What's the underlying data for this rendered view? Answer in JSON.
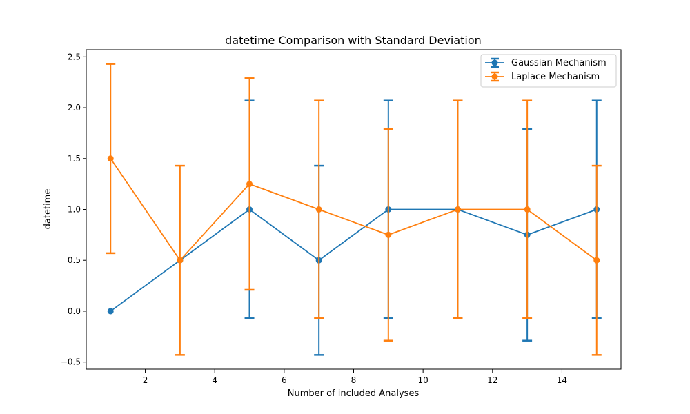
{
  "chart_data": {
    "type": "line",
    "title": "datetime Comparison with Standard Deviation",
    "xlabel": "Number of included Analyses",
    "ylabel": "datetime",
    "xlim": [
      0.3,
      15.7
    ],
    "ylim": [
      -0.57,
      2.57
    ],
    "x_ticks": [
      2,
      4,
      6,
      8,
      10,
      12,
      14
    ],
    "y_ticks": [
      -0.5,
      0.0,
      0.5,
      1.0,
      1.5,
      2.0,
      2.5
    ],
    "x_tick_labels": [
      "2",
      "4",
      "6",
      "8",
      "10",
      "12",
      "14"
    ],
    "y_tick_labels": [
      "−0.5",
      "0.0",
      "0.5",
      "1.0",
      "1.5",
      "2.0",
      "2.5"
    ],
    "grid": false,
    "legend_position": "top-right",
    "x": [
      1,
      3,
      5,
      7,
      9,
      11,
      13,
      15
    ],
    "series": [
      {
        "name": "Gaussian Mechanism",
        "color": "#1f77b4",
        "values": [
          0.0,
          0.5,
          1.0,
          0.5,
          1.0,
          1.0,
          0.75,
          1.0
        ],
        "error": [
          0.0,
          0.0,
          1.07,
          0.93,
          1.07,
          1.07,
          1.04,
          1.07
        ]
      },
      {
        "name": "Laplace Mechanism",
        "color": "#ff7f0e",
        "values": [
          1.5,
          0.5,
          1.25,
          1.0,
          0.75,
          1.0,
          1.0,
          0.5
        ],
        "error": [
          0.93,
          0.93,
          1.04,
          1.07,
          1.04,
          1.07,
          1.07,
          0.93
        ]
      }
    ]
  }
}
